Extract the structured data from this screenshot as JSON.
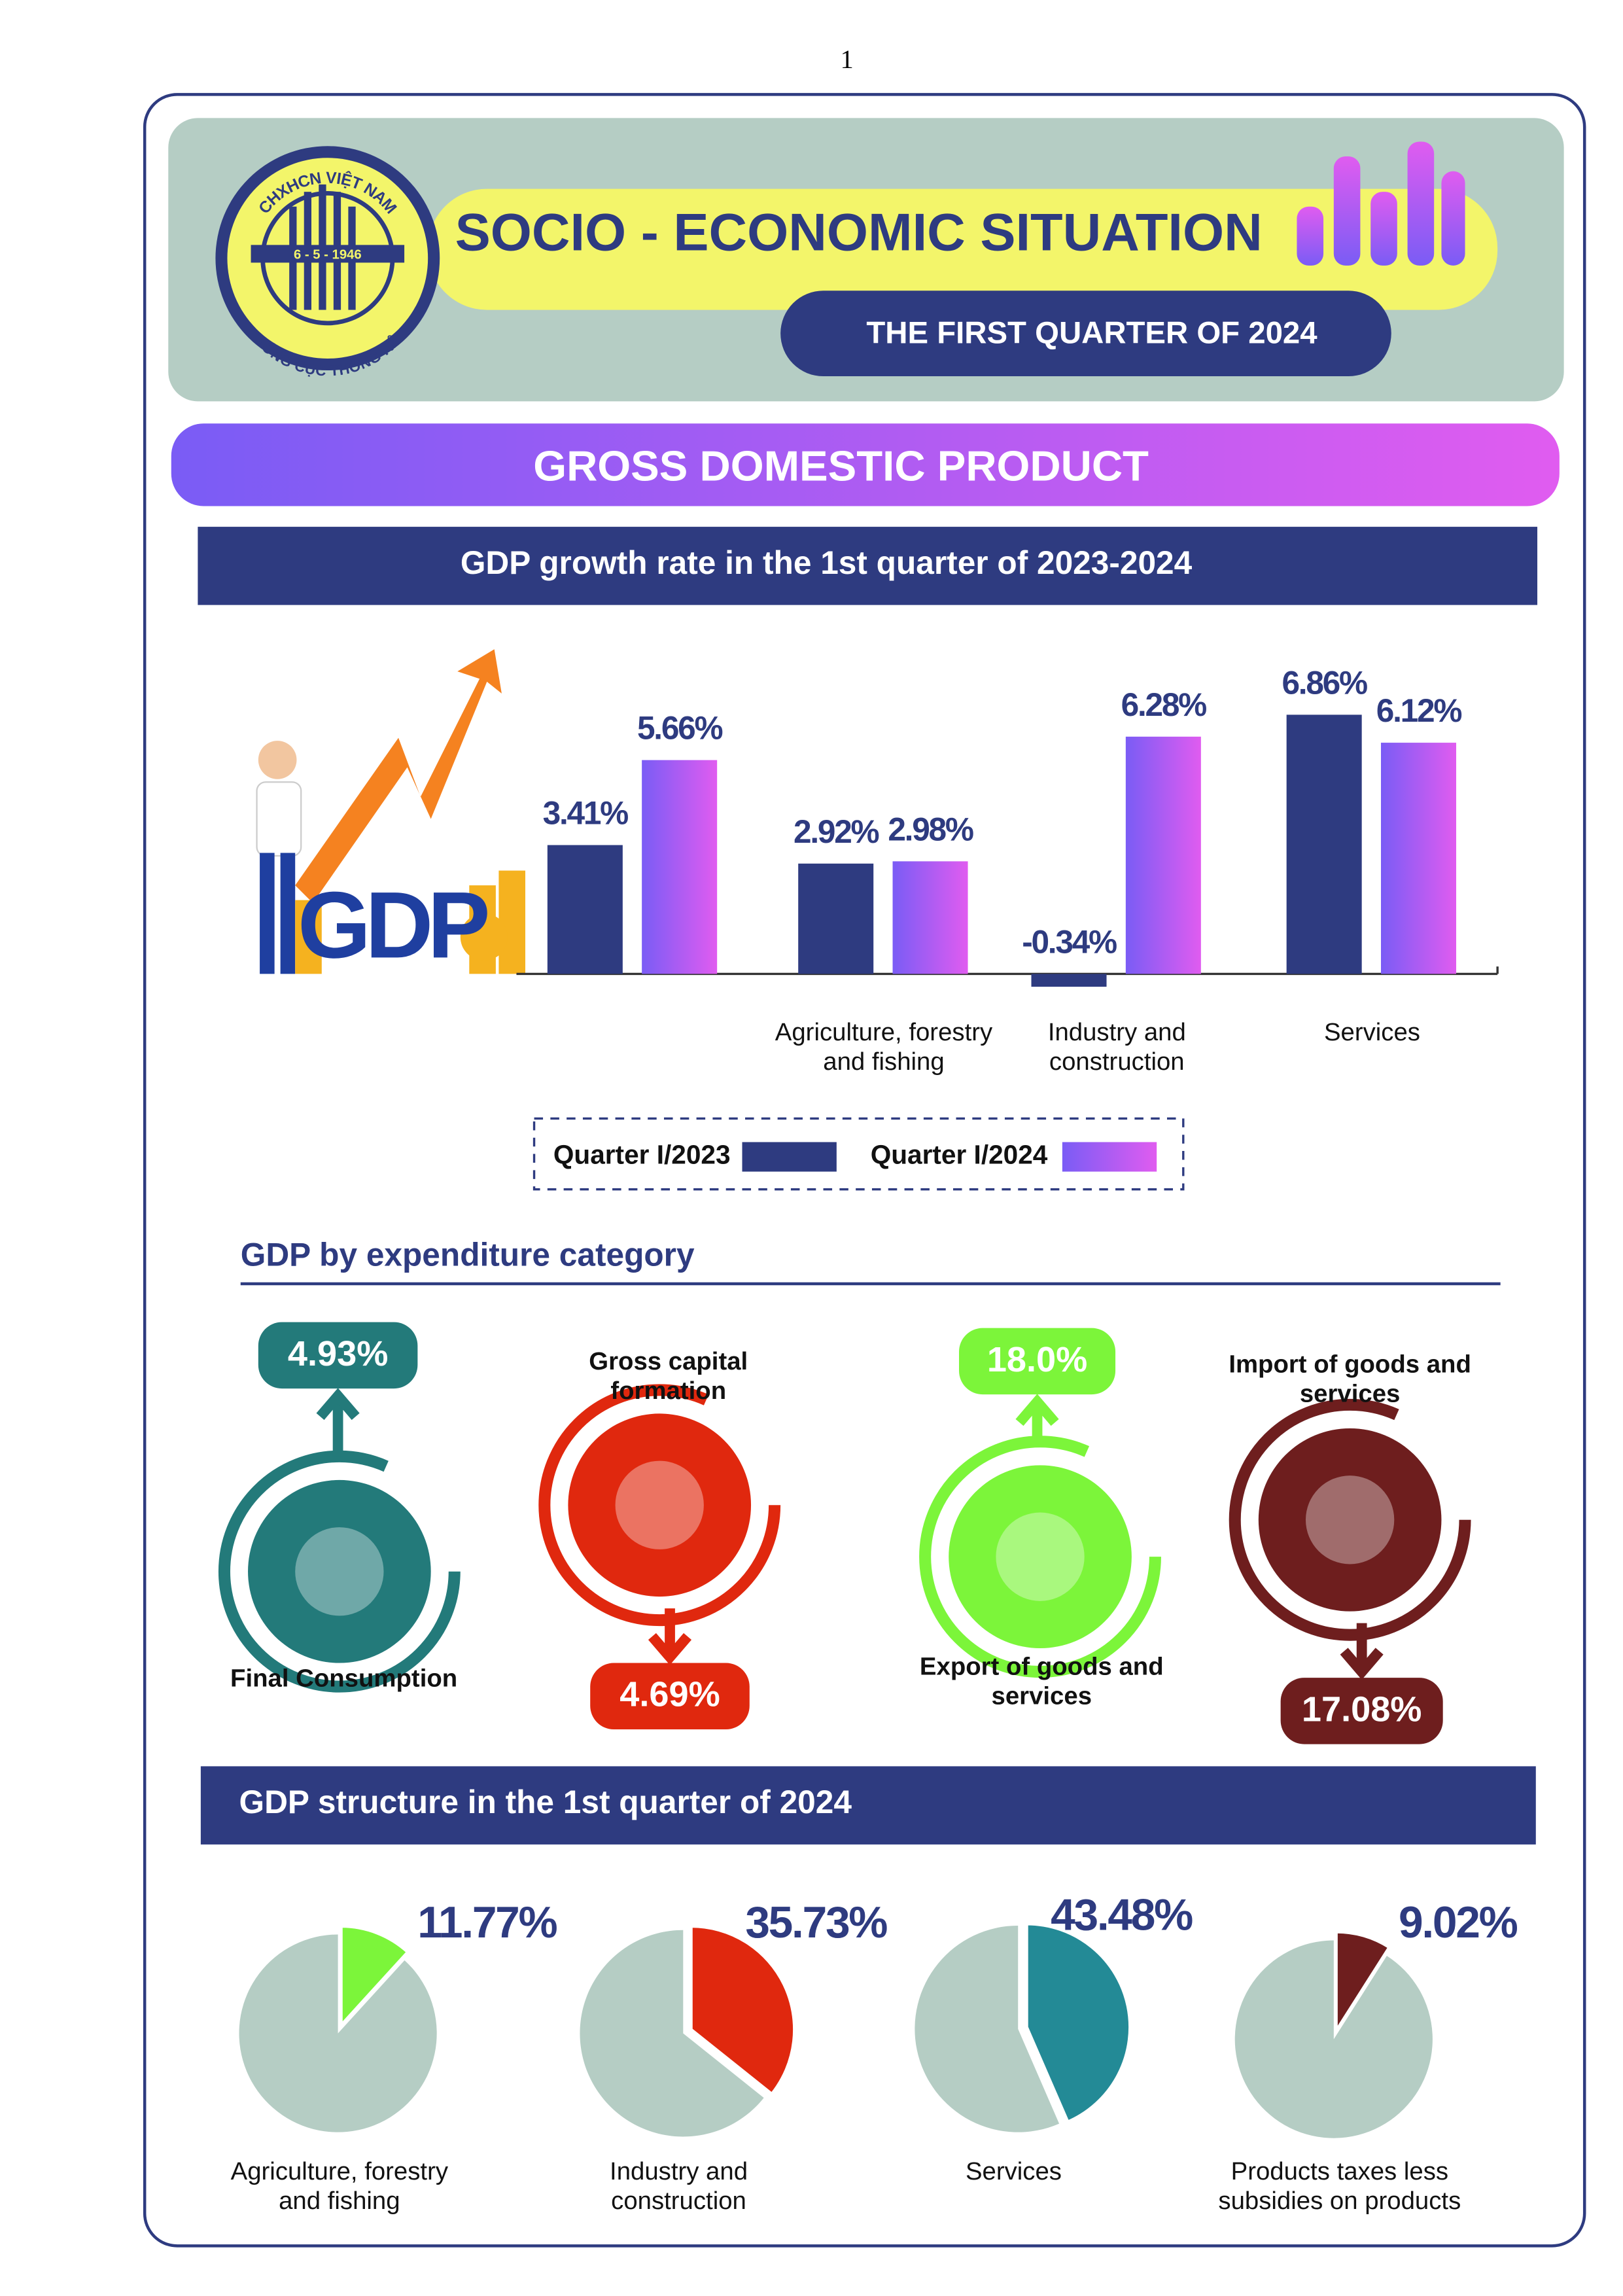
{
  "page_number": "1",
  "header": {
    "logo_top": "CHXHCN VIỆT NAM",
    "logo_date": "6 - 5 - 1946",
    "logo_bottom": "TỔNG CỤC THỐNG KÊ",
    "title": "SOCIO - ECONOMIC SITUATION",
    "subtitle": "THE FIRST QUARTER OF 2024"
  },
  "section_title": "GROSS DOMESTIC PRODUCT",
  "illustration_text": "GDP",
  "expenditure": {
    "title": "GDP by expenditure category",
    "items": [
      {
        "label": "Final Consumption",
        "value_label": "4.93%"
      },
      {
        "label": "Gross capital formation",
        "value_label": "4.69%"
      },
      {
        "label": "Export of goods and services",
        "value_label": "18.0%"
      },
      {
        "label": "Import of goods and services",
        "value_label": "17.08%"
      }
    ]
  },
  "structure_title": "GDP structure in the 1st quarter of 2024",
  "chart_data": [
    {
      "type": "bar",
      "title": "GDP growth rate in the 1st quarter of 2023-2024",
      "categories": [
        null,
        "Agriculture, forestry and fishing",
        "Industry and construction",
        "Services"
      ],
      "series": [
        {
          "name": "Quarter I/2023",
          "color": "#2e3b80",
          "values": [
            3.41,
            2.92,
            -0.34,
            6.86
          ],
          "value_labels": [
            "3.41%",
            "2.92%",
            "-0.34%",
            "6.86%"
          ]
        },
        {
          "name": "Quarter I/2024",
          "color": "#7a5cf5",
          "gradient": [
            "#7a5cf5",
            "#e05cf0"
          ],
          "values": [
            5.66,
            2.98,
            6.28,
            6.12
          ],
          "value_labels": [
            "5.66%",
            "2.98%",
            "6.28%",
            "6.12%"
          ]
        }
      ]
    },
    {
      "type": "pie",
      "categories": [
        "Agriculture, forestry and fishing"
      ],
      "values": [
        11.77
      ],
      "value_labels": [
        "11.77%"
      ],
      "color": "#7cf53a",
      "rest_color": "#b5cdc4"
    },
    {
      "type": "pie",
      "categories": [
        "Industry and construction"
      ],
      "values": [
        35.73
      ],
      "value_labels": [
        "35.73%"
      ],
      "color": "#e0280e",
      "rest_color": "#b5cdc4"
    },
    {
      "type": "pie",
      "categories": [
        "Services"
      ],
      "values": [
        43.48
      ],
      "value_labels": [
        "43.48%"
      ],
      "color": "#238a96",
      "rest_color": "#b5cdc4"
    },
    {
      "type": "pie",
      "categories": [
        "Products taxes less subsidies on products"
      ],
      "values": [
        9.02
      ],
      "value_labels": [
        "9.02%"
      ],
      "color": "#6e1e1e",
      "rest_color": "#b5cdc4"
    }
  ]
}
